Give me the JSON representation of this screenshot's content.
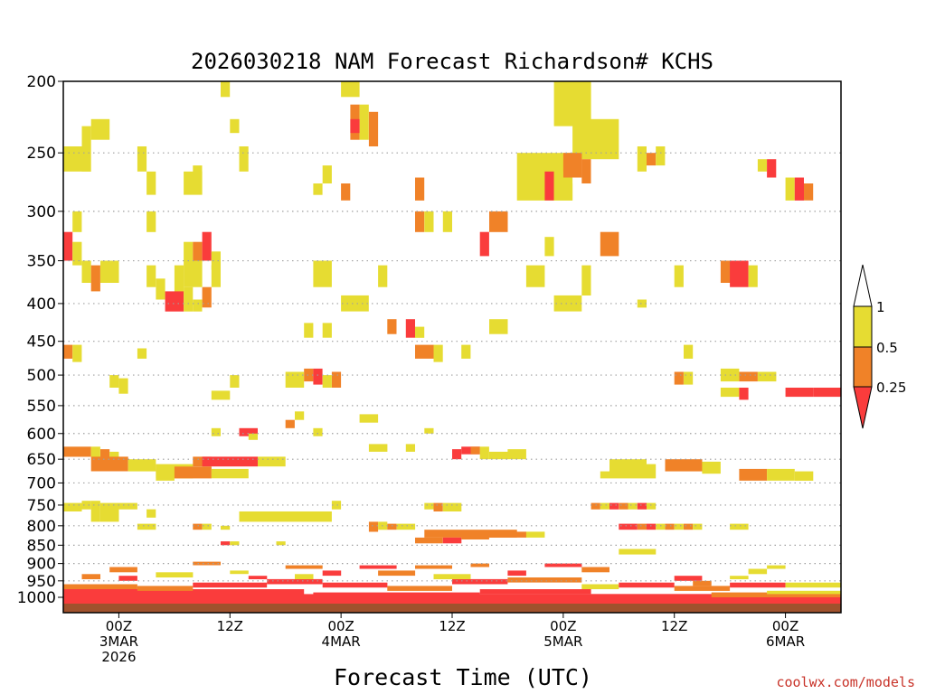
{
  "colors": {
    "ri_above_1": "#ffffff",
    "ri_05_to_1": "#e6dc32",
    "ri_025_to_05": "#f08228",
    "ri_below_025": "#fa3c3c",
    "ground": "#a0522d",
    "gridline": "#a0a0a0",
    "credit": "#c83228"
  },
  "chart_data": {
    "type": "heatmap",
    "title": "2026030218 NAM Forecast Richardson# KCHS",
    "xlabel": "Forecast Time (UTC)",
    "ylabel": "",
    "y_scale": "log-pressure (inverted)",
    "y_unit": "hPa",
    "ylim": [
      1000,
      200
    ],
    "xlim_hours_from_init": [
      0,
      84
    ],
    "grid": true,
    "y_ticks": [
      200,
      250,
      300,
      350,
      400,
      450,
      500,
      550,
      600,
      650,
      700,
      750,
      800,
      850,
      900,
      950,
      1000
    ],
    "x_ticks": [
      {
        "hour": 6,
        "line1": "00Z",
        "line2": "3MAR",
        "line3": "2026"
      },
      {
        "hour": 18,
        "line1": "12Z",
        "line2": "",
        "line3": ""
      },
      {
        "hour": 30,
        "line1": "00Z",
        "line2": "4MAR",
        "line3": ""
      },
      {
        "hour": 42,
        "line1": "12Z",
        "line2": "",
        "line3": ""
      },
      {
        "hour": 54,
        "line1": "00Z",
        "line2": "5MAR",
        "line3": ""
      },
      {
        "hour": 66,
        "line1": "12Z",
        "line2": "",
        "line3": ""
      },
      {
        "hour": 78,
        "line1": "00Z",
        "line2": "6MAR",
        "line3": ""
      }
    ],
    "legend": {
      "position": "right",
      "labels": [
        "1",
        "0.5",
        "0.25"
      ],
      "bins": [
        {
          "range": "> 1",
          "color_key": "ri_above_1"
        },
        {
          "range": "0.5 to 1",
          "color_key": "ri_05_to_1"
        },
        {
          "range": "0.25 to 0.5",
          "color_key": "ri_025_to_05"
        },
        {
          "range": "< 0.25",
          "color_key": "ri_below_025"
        }
      ]
    },
    "cells_note": "Each cell: [hour_start, hour_end, pressure_top_hPa, pressure_bottom_hPa, category]; category 1 = 0.5-1, 2 = 0.25-0.5, 3 = <0.25 (values estimated from figure)",
    "cells": [
      [
        2,
        3,
        230,
        265,
        1
      ],
      [
        3,
        5,
        225,
        240,
        1
      ],
      [
        0,
        2,
        245,
        265,
        1
      ],
      [
        8,
        9,
        245,
        265,
        1
      ],
      [
        9,
        10,
        265,
        285,
        1
      ],
      [
        13,
        15,
        265,
        285,
        1
      ],
      [
        14,
        15,
        260,
        270,
        1
      ],
      [
        17,
        18,
        200,
        210,
        1
      ],
      [
        18,
        19,
        225,
        235,
        1
      ],
      [
        19,
        20,
        245,
        265,
        1
      ],
      [
        28,
        29,
        260,
        275,
        1
      ],
      [
        27,
        28,
        275,
        285,
        1
      ],
      [
        30,
        32,
        200,
        210,
        1
      ],
      [
        31,
        32,
        215,
        240,
        2
      ],
      [
        32,
        33,
        215,
        240,
        1
      ],
      [
        33,
        34,
        220,
        245,
        2
      ],
      [
        31,
        32,
        225,
        235,
        3
      ],
      [
        30,
        31,
        275,
        290,
        2
      ],
      [
        38,
        39,
        270,
        290,
        2
      ],
      [
        38,
        39,
        300,
        320,
        2
      ],
      [
        39,
        40,
        300,
        320,
        1
      ],
      [
        41,
        42,
        300,
        320,
        1
      ],
      [
        46,
        48,
        300,
        320,
        2
      ],
      [
        53,
        57,
        200,
        230,
        1
      ],
      [
        55,
        60,
        225,
        255,
        1
      ],
      [
        49,
        55,
        250,
        290,
        1
      ],
      [
        54,
        56,
        250,
        270,
        2
      ],
      [
        52,
        53,
        265,
        290,
        3
      ],
      [
        53,
        54,
        265,
        290,
        1
      ],
      [
        54,
        55,
        275,
        290,
        1
      ],
      [
        56,
        57,
        255,
        275,
        2
      ],
      [
        62,
        63,
        245,
        265,
        1
      ],
      [
        63,
        64,
        250,
        260,
        2
      ],
      [
        64,
        65,
        245,
        260,
        1
      ],
      [
        75,
        76,
        255,
        265,
        1
      ],
      [
        76,
        77,
        255,
        270,
        3
      ],
      [
        78,
        79,
        270,
        290,
        1
      ],
      [
        79,
        80,
        270,
        290,
        3
      ],
      [
        80,
        81,
        275,
        290,
        2
      ],
      [
        1,
        2,
        300,
        320,
        1
      ],
      [
        9,
        10,
        300,
        320,
        1
      ],
      [
        13,
        14,
        330,
        350,
        1
      ],
      [
        14,
        15,
        330,
        350,
        2
      ],
      [
        15,
        16,
        320,
        350,
        3
      ],
      [
        16,
        17,
        340,
        360,
        1
      ],
      [
        0,
        1,
        320,
        350,
        3
      ],
      [
        1,
        2,
        330,
        355,
        1
      ],
      [
        2,
        3,
        350,
        375,
        1
      ],
      [
        3,
        4,
        355,
        385,
        2
      ],
      [
        4,
        6,
        350,
        375,
        1
      ],
      [
        9,
        10,
        355,
        380,
        1
      ],
      [
        10,
        11,
        370,
        395,
        1
      ],
      [
        12,
        13,
        355,
        390,
        1
      ],
      [
        13,
        15,
        350,
        380,
        1
      ],
      [
        16,
        17,
        355,
        380,
        1
      ],
      [
        27,
        29,
        350,
        380,
        1
      ],
      [
        34,
        35,
        355,
        380,
        1
      ],
      [
        45,
        46,
        320,
        345,
        3
      ],
      [
        50,
        52,
        355,
        380,
        1
      ],
      [
        52,
        53,
        325,
        345,
        1
      ],
      [
        58,
        60,
        320,
        345,
        2
      ],
      [
        56,
        57,
        355,
        390,
        1
      ],
      [
        66,
        67,
        355,
        380,
        1
      ],
      [
        71,
        73,
        350,
        375,
        2
      ],
      [
        72,
        74,
        350,
        380,
        3
      ],
      [
        74,
        75,
        355,
        380,
        1
      ],
      [
        11,
        13,
        385,
        410,
        3
      ],
      [
        13,
        14,
        380,
        410,
        1
      ],
      [
        14,
        15,
        395,
        410,
        1
      ],
      [
        15,
        16,
        380,
        405,
        2
      ],
      [
        30,
        33,
        390,
        410,
        1
      ],
      [
        53,
        56,
        390,
        410,
        1
      ],
      [
        62,
        63,
        395,
        405,
        1
      ],
      [
        26,
        27,
        425,
        445,
        1
      ],
      [
        28,
        29,
        425,
        445,
        1
      ],
      [
        35,
        36,
        420,
        440,
        2
      ],
      [
        37,
        38,
        420,
        445,
        3
      ],
      [
        38,
        39,
        430,
        445,
        1
      ],
      [
        46,
        48,
        420,
        440,
        1
      ],
      [
        0,
        1,
        455,
        475,
        2
      ],
      [
        1,
        2,
        455,
        480,
        1
      ],
      [
        8,
        9,
        460,
        475,
        1
      ],
      [
        38,
        40,
        455,
        475,
        2
      ],
      [
        40,
        41,
        455,
        480,
        1
      ],
      [
        43,
        44,
        455,
        475,
        1
      ],
      [
        67,
        68,
        455,
        475,
        1
      ],
      [
        5,
        6,
        500,
        520,
        1
      ],
      [
        6,
        7,
        505,
        530,
        1
      ],
      [
        18,
        19,
        500,
        520,
        1
      ],
      [
        24,
        26,
        495,
        520,
        1
      ],
      [
        26,
        27,
        490,
        510,
        2
      ],
      [
        27,
        28,
        490,
        515,
        3
      ],
      [
        29,
        30,
        495,
        520,
        2
      ],
      [
        28,
        29,
        500,
        520,
        1
      ],
      [
        66,
        67,
        495,
        515,
        2
      ],
      [
        67,
        68,
        495,
        515,
        1
      ],
      [
        71,
        73,
        490,
        510,
        1
      ],
      [
        73,
        75,
        495,
        510,
        2
      ],
      [
        75,
        77,
        495,
        510,
        1
      ],
      [
        71,
        73,
        520,
        535,
        1
      ],
      [
        73,
        74,
        520,
        540,
        3
      ],
      [
        78,
        81,
        520,
        535,
        3
      ],
      [
        81,
        84,
        520,
        535,
        3
      ],
      [
        16,
        18,
        525,
        540,
        1
      ],
      [
        24,
        25,
        575,
        590,
        2
      ],
      [
        25,
        26,
        560,
        575,
        1
      ],
      [
        32,
        34,
        565,
        580,
        1
      ],
      [
        16,
        17,
        590,
        605,
        1
      ],
      [
        19,
        21,
        590,
        605,
        3
      ],
      [
        20,
        21,
        600,
        612,
        1
      ],
      [
        27,
        28,
        590,
        605,
        1
      ],
      [
        39,
        40,
        590,
        600,
        1
      ],
      [
        33,
        35,
        620,
        635,
        1
      ],
      [
        37,
        38,
        620,
        635,
        1
      ],
      [
        0,
        3,
        625,
        645,
        2
      ],
      [
        3,
        4,
        625,
        645,
        1
      ],
      [
        4,
        5,
        630,
        650,
        2
      ],
      [
        5,
        6,
        635,
        650,
        1
      ],
      [
        3,
        7,
        645,
        675,
        2
      ],
      [
        7,
        10,
        650,
        675,
        1
      ],
      [
        10,
        14,
        660,
        690,
        1
      ],
      [
        14,
        16,
        645,
        665,
        2
      ],
      [
        15,
        21,
        645,
        665,
        3
      ],
      [
        21,
        24,
        645,
        665,
        1
      ],
      [
        10,
        12,
        670,
        695,
        1
      ],
      [
        12,
        16,
        665,
        690,
        2
      ],
      [
        16,
        20,
        670,
        690,
        1
      ],
      [
        43,
        45,
        625,
        640,
        3
      ],
      [
        42,
        43,
        630,
        650,
        3
      ],
      [
        44,
        45,
        625,
        640,
        2
      ],
      [
        45,
        46,
        625,
        650,
        1
      ],
      [
        46,
        48,
        635,
        650,
        1
      ],
      [
        48,
        50,
        630,
        650,
        1
      ],
      [
        58,
        59,
        675,
        690,
        1
      ],
      [
        59,
        63,
        650,
        690,
        1
      ],
      [
        63,
        64,
        660,
        690,
        1
      ],
      [
        65,
        69,
        650,
        675,
        2
      ],
      [
        69,
        71,
        655,
        680,
        1
      ],
      [
        73,
        76,
        670,
        695,
        2
      ],
      [
        76,
        79,
        670,
        695,
        1
      ],
      [
        79,
        81,
        675,
        695,
        1
      ],
      [
        2,
        3,
        740,
        760,
        1
      ],
      [
        3,
        4,
        740,
        790,
        1
      ],
      [
        4,
        6,
        745,
        790,
        1
      ],
      [
        6,
        8,
        745,
        760,
        1
      ],
      [
        9,
        10,
        760,
        780,
        1
      ],
      [
        0,
        2,
        745,
        765,
        1
      ],
      [
        29,
        30,
        740,
        760,
        1
      ],
      [
        39,
        40,
        745,
        760,
        1
      ],
      [
        40,
        41,
        745,
        765,
        2
      ],
      [
        41,
        43,
        745,
        765,
        1
      ],
      [
        57,
        58,
        745,
        760,
        2
      ],
      [
        58,
        59,
        745,
        760,
        1
      ],
      [
        59,
        60,
        745,
        760,
        3
      ],
      [
        60,
        61,
        745,
        760,
        2
      ],
      [
        61,
        62,
        745,
        760,
        1
      ],
      [
        62,
        63,
        745,
        760,
        3
      ],
      [
        63,
        64,
        745,
        760,
        1
      ],
      [
        19,
        29,
        765,
        790,
        1
      ],
      [
        33,
        34,
        790,
        815,
        2
      ],
      [
        34,
        35,
        790,
        810,
        1
      ],
      [
        35,
        36,
        795,
        810,
        2
      ],
      [
        36,
        38,
        795,
        810,
        1
      ],
      [
        39,
        49,
        810,
        830,
        2
      ],
      [
        38,
        41,
        830,
        845,
        2
      ],
      [
        41,
        43,
        830,
        845,
        3
      ],
      [
        43,
        46,
        820,
        835,
        2
      ],
      [
        46,
        50,
        815,
        830,
        2
      ],
      [
        50,
        52,
        815,
        830,
        1
      ],
      [
        8,
        10,
        795,
        810,
        1
      ],
      [
        14,
        15,
        795,
        810,
        2
      ],
      [
        15,
        16,
        795,
        810,
        1
      ],
      [
        17,
        18,
        800,
        810,
        1
      ],
      [
        60,
        62,
        795,
        810,
        3
      ],
      [
        62,
        63,
        795,
        810,
        2
      ],
      [
        63,
        64,
        795,
        810,
        3
      ],
      [
        64,
        65,
        795,
        810,
        1
      ],
      [
        65,
        66,
        795,
        810,
        2
      ],
      [
        66,
        67,
        795,
        810,
        1
      ],
      [
        67,
        68,
        795,
        810,
        2
      ],
      [
        68,
        69,
        795,
        810,
        1
      ],
      [
        72,
        74,
        795,
        810,
        1
      ],
      [
        60,
        64,
        860,
        875,
        1
      ],
      [
        17,
        18,
        840,
        850,
        3
      ],
      [
        18,
        19,
        840,
        850,
        1
      ],
      [
        23,
        24,
        840,
        850,
        1
      ],
      [
        0,
        84,
        1000,
        1030,
        3
      ],
      [
        0,
        84,
        990,
        1005,
        3
      ],
      [
        0,
        26,
        975,
        995,
        3
      ],
      [
        27,
        45,
        985,
        1000,
        3
      ],
      [
        45,
        57,
        975,
        990,
        3
      ],
      [
        57,
        70,
        990,
        1005,
        3
      ],
      [
        70,
        84,
        985,
        1000,
        2
      ],
      [
        76,
        84,
        980,
        990,
        1
      ],
      [
        0,
        8,
        960,
        975,
        2
      ],
      [
        8,
        14,
        965,
        980,
        2
      ],
      [
        14,
        22,
        955,
        970,
        3
      ],
      [
        22,
        28,
        945,
        960,
        3
      ],
      [
        28,
        35,
        955,
        970,
        3
      ],
      [
        35,
        42,
        965,
        980,
        2
      ],
      [
        42,
        48,
        945,
        960,
        3
      ],
      [
        48,
        56,
        940,
        955,
        2
      ],
      [
        56,
        60,
        960,
        975,
        1
      ],
      [
        60,
        66,
        955,
        970,
        3
      ],
      [
        66,
        72,
        965,
        980,
        2
      ],
      [
        72,
        78,
        955,
        970,
        3
      ],
      [
        78,
        84,
        955,
        970,
        1
      ],
      [
        5,
        8,
        910,
        925,
        2
      ],
      [
        10,
        14,
        925,
        940,
        1
      ],
      [
        14,
        17,
        895,
        905,
        2
      ],
      [
        24,
        28,
        905,
        915,
        2
      ],
      [
        28,
        30,
        920,
        935,
        3
      ],
      [
        32,
        36,
        905,
        915,
        3
      ],
      [
        34,
        38,
        920,
        935,
        2
      ],
      [
        38,
        42,
        905,
        915,
        2
      ],
      [
        40,
        44,
        930,
        945,
        1
      ],
      [
        44,
        46,
        900,
        910,
        2
      ],
      [
        48,
        50,
        920,
        935,
        3
      ],
      [
        52,
        56,
        900,
        910,
        3
      ],
      [
        56,
        59,
        910,
        925,
        2
      ],
      [
        66,
        69,
        935,
        950,
        3
      ],
      [
        68,
        70,
        950,
        965,
        2
      ],
      [
        72,
        74,
        935,
        945,
        1
      ],
      [
        74,
        76,
        915,
        930,
        1
      ],
      [
        76,
        78,
        905,
        915,
        1
      ],
      [
        2,
        4,
        930,
        945,
        2
      ],
      [
        6,
        8,
        935,
        950,
        3
      ],
      [
        18,
        20,
        920,
        930,
        1
      ],
      [
        20,
        22,
        935,
        945,
        3
      ],
      [
        25,
        27,
        930,
        945,
        1
      ]
    ]
  },
  "credit": "coolwx.com/models"
}
